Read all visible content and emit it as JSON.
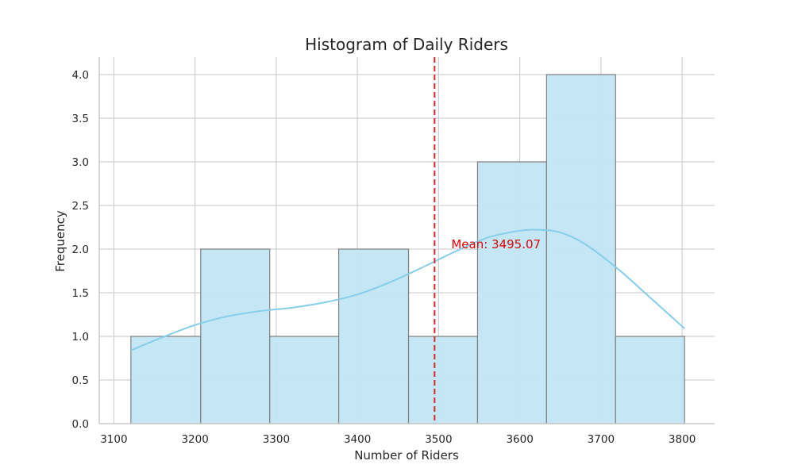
{
  "chart_data": {
    "type": "histogram",
    "title": "Histogram of Daily Riders",
    "xlabel": "Number of Riders",
    "ylabel": "Frequency",
    "xlim": [
      3082,
      3840
    ],
    "ylim": [
      0,
      4.2
    ],
    "x_ticks": [
      3100,
      3200,
      3300,
      3400,
      3500,
      3600,
      3700,
      3800
    ],
    "y_ticks": [
      0.0,
      0.5,
      1.0,
      1.5,
      2.0,
      2.5,
      3.0,
      3.5,
      4.0
    ],
    "x_tick_labels": [
      "3100",
      "3200",
      "3300",
      "3400",
      "3500",
      "3600",
      "3700",
      "3800"
    ],
    "y_tick_labels": [
      "0.0",
      "0.5",
      "1.0",
      "1.5",
      "2.0",
      "2.5",
      "3.0",
      "3.5",
      "4.0"
    ],
    "bins": [
      {
        "start": 3121,
        "end": 3207,
        "count": 1
      },
      {
        "start": 3207,
        "end": 3292,
        "count": 2
      },
      {
        "start": 3292,
        "end": 3377,
        "count": 1
      },
      {
        "start": 3377,
        "end": 3463,
        "count": 2
      },
      {
        "start": 3463,
        "end": 3548,
        "count": 1
      },
      {
        "start": 3548,
        "end": 3633,
        "count": 3
      },
      {
        "start": 3633,
        "end": 3718,
        "count": 4
      },
      {
        "start": 3718,
        "end": 3803,
        "count": 1
      }
    ],
    "kde": {
      "x": [
        3121,
        3160,
        3200,
        3240,
        3280,
        3320,
        3360,
        3400,
        3440,
        3480,
        3520,
        3560,
        3600,
        3625,
        3650,
        3680,
        3720,
        3760,
        3803
      ],
      "y": [
        0.84,
        0.99,
        1.13,
        1.23,
        1.29,
        1.33,
        1.39,
        1.48,
        1.62,
        1.79,
        1.97,
        2.13,
        2.21,
        2.22,
        2.19,
        2.06,
        1.78,
        1.45,
        1.09
      ]
    },
    "mean": {
      "value": 3495.07,
      "label": "Mean: 3495.07"
    },
    "grid": true,
    "colors": {
      "bar_fill": "#c2e5f4",
      "bar_edge": "#808080",
      "kde_line": "#87ceeb",
      "mean_line": "#d62728",
      "mean_label": "#e00000",
      "grid": "#d0d0d0",
      "axis": "#cccccc",
      "text": "#262626"
    }
  }
}
